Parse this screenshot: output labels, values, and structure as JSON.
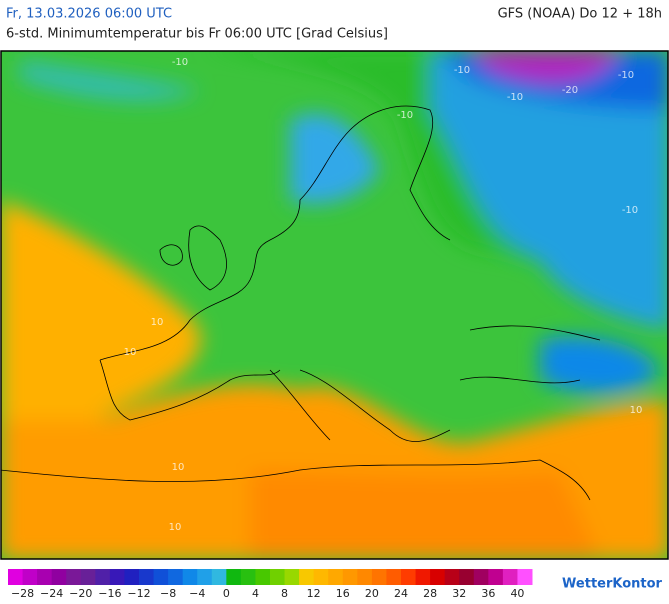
{
  "header": {
    "date": "Fr, 13.03.2026 06:00 UTC",
    "model": "GFS (NOAA) Do 12 + 18h",
    "subtitle": "6-std. Minimumtemperatur bis Fr 06:00 UTC [Grad Celsius]"
  },
  "map": {
    "contour_labels": [
      "-10",
      "-10",
      "-20",
      "-10",
      "-10",
      "-10",
      "10",
      "10",
      "10",
      "10",
      "10",
      "-10"
    ]
  },
  "legend": {
    "range": [
      -30,
      42
    ],
    "colors": [
      "#e000e0",
      "#c000c8",
      "#a800b0",
      "#9000a0",
      "#7a1898",
      "#682098",
      "#5020a8",
      "#3818b8",
      "#2020c0",
      "#1838cc",
      "#1050d8",
      "#1068e0",
      "#1088e8",
      "#20a0e8",
      "#30b8e0",
      "#10b810",
      "#28c010",
      "#48c800",
      "#70d000",
      "#98d800",
      "#f8c800",
      "#ffb800",
      "#ffa800",
      "#ff9800",
      "#ff8800",
      "#ff7400",
      "#ff5c00",
      "#ff3c00",
      "#f01800",
      "#d80000",
      "#b80018",
      "#980030",
      "#a00060",
      "#c00090",
      "#e020c0",
      "#ff50ff"
    ],
    "ticks": [
      {
        "value": -28,
        "label": "−28"
      },
      {
        "value": -24,
        "label": "−24"
      },
      {
        "value": -20,
        "label": "−20"
      },
      {
        "value": -16,
        "label": "−16"
      },
      {
        "value": -12,
        "label": "−12"
      },
      {
        "value": -8,
        "label": "−8"
      },
      {
        "value": -4,
        "label": "−4"
      },
      0,
      4,
      8,
      12,
      16,
      20,
      24,
      28,
      32,
      36,
      40
    ]
  },
  "logo": "WetterKontor"
}
